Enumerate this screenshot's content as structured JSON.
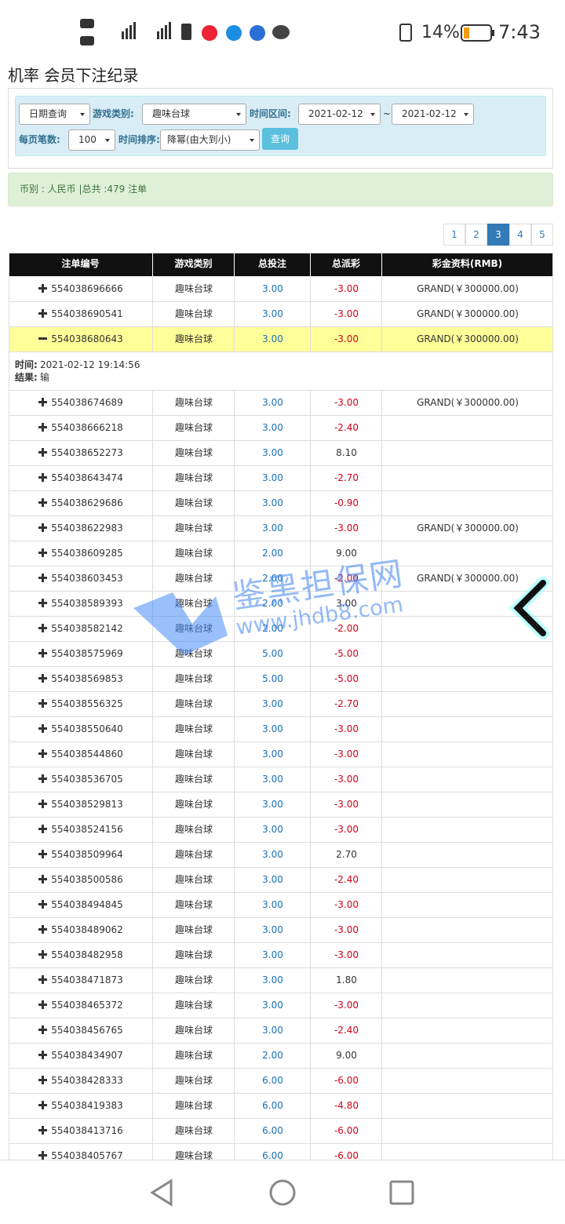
{
  "status_bar": {
    "battery": "14%",
    "time": "7:43"
  },
  "page": {
    "title": "机率 会员下注纪录"
  },
  "filter": {
    "date_mode": "日期查询",
    "game_label": "游戏类别:",
    "game": "趣味台球",
    "range_label": "时间区间:",
    "date_from": "2021-02-12",
    "range_sep": "~",
    "date_to": "2021-02-12",
    "per_page_label": "每页笔数:",
    "per_page": "100",
    "sort_label": "时间排序:",
    "sort": "降幂(由大到小)",
    "submit": "查询"
  },
  "summary": "币别 : 人民币 |总共 :479 注单",
  "pagination": {
    "pages": [
      "1",
      "2",
      "3",
      "4",
      "5"
    ],
    "active": 2
  },
  "table": {
    "headers": [
      "注单编号",
      "游戏类别",
      "总投注",
      "总派彩",
      "彩金资料(RMB)"
    ],
    "expanded": {
      "row": 2,
      "time_label": "时间:",
      "time": "2021-02-12 19:14:56",
      "result_label": "结果:",
      "result": "输"
    },
    "rows": [
      {
        "id": "554038696666",
        "game": "趣味台球",
        "bet": "3.00",
        "payout": "-3.00",
        "jackpot": "GRAND(￥300000.00)"
      },
      {
        "id": "554038690541",
        "game": "趣味台球",
        "bet": "3.00",
        "payout": "-3.00",
        "jackpot": "GRAND(￥300000.00)"
      },
      {
        "id": "554038680643",
        "game": "趣味台球",
        "bet": "3.00",
        "payout": "-3.00",
        "jackpot": "GRAND(￥300000.00)"
      },
      {
        "id": "554038674689",
        "game": "趣味台球",
        "bet": "3.00",
        "payout": "-3.00",
        "jackpot": "GRAND(￥300000.00)"
      },
      {
        "id": "554038666218",
        "game": "趣味台球",
        "bet": "3.00",
        "payout": "-2.40"
      },
      {
        "id": "554038652273",
        "game": "趣味台球",
        "bet": "3.00",
        "payout": "8.10"
      },
      {
        "id": "554038643474",
        "game": "趣味台球",
        "bet": "3.00",
        "payout": "-2.70"
      },
      {
        "id": "554038629686",
        "game": "趣味台球",
        "bet": "3.00",
        "payout": "-0.90"
      },
      {
        "id": "554038622983",
        "game": "趣味台球",
        "bet": "3.00",
        "payout": "-3.00",
        "jackpot": "GRAND(￥300000.00)"
      },
      {
        "id": "554038609285",
        "game": "趣味台球",
        "bet": "2.00",
        "payout": "9.00"
      },
      {
        "id": "554038603453",
        "game": "趣味台球",
        "bet": "2.00",
        "payout": "-2.00",
        "jackpot": "GRAND(￥300000.00)"
      },
      {
        "id": "554038589393",
        "game": "趣味台球",
        "bet": "2.00",
        "payout": "3.00"
      },
      {
        "id": "554038582142",
        "game": "趣味台球",
        "bet": "2.00",
        "payout": "-2.00"
      },
      {
        "id": "554038575969",
        "game": "趣味台球",
        "bet": "5.00",
        "payout": "-5.00"
      },
      {
        "id": "554038569853",
        "game": "趣味台球",
        "bet": "5.00",
        "payout": "-5.00"
      },
      {
        "id": "554038556325",
        "game": "趣味台球",
        "bet": "3.00",
        "payout": "-2.70"
      },
      {
        "id": "554038550640",
        "game": "趣味台球",
        "bet": "3.00",
        "payout": "-3.00"
      },
      {
        "id": "554038544860",
        "game": "趣味台球",
        "bet": "3.00",
        "payout": "-3.00"
      },
      {
        "id": "554038536705",
        "game": "趣味台球",
        "bet": "3.00",
        "payout": "-3.00"
      },
      {
        "id": "554038529813",
        "game": "趣味台球",
        "bet": "3.00",
        "payout": "-3.00"
      },
      {
        "id": "554038524156",
        "game": "趣味台球",
        "bet": "3.00",
        "payout": "-3.00"
      },
      {
        "id": "554038509964",
        "game": "趣味台球",
        "bet": "3.00",
        "payout": "2.70"
      },
      {
        "id": "554038500586",
        "game": "趣味台球",
        "bet": "3.00",
        "payout": "-2.40"
      },
      {
        "id": "554038494845",
        "game": "趣味台球",
        "bet": "3.00",
        "payout": "-3.00"
      },
      {
        "id": "554038489062",
        "game": "趣味台球",
        "bet": "3.00",
        "payout": "-3.00"
      },
      {
        "id": "554038482958",
        "game": "趣味台球",
        "bet": "3.00",
        "payout": "-3.00"
      },
      {
        "id": "554038471873",
        "game": "趣味台球",
        "bet": "3.00",
        "payout": "1.80"
      },
      {
        "id": "554038465372",
        "game": "趣味台球",
        "bet": "3.00",
        "payout": "-3.00"
      },
      {
        "id": "554038456765",
        "game": "趣味台球",
        "bet": "3.00",
        "payout": "-2.40"
      },
      {
        "id": "554038434907",
        "game": "趣味台球",
        "bet": "2.00",
        "payout": "9.00"
      },
      {
        "id": "554038428333",
        "game": "趣味台球",
        "bet": "6.00",
        "payout": "-6.00"
      },
      {
        "id": "554038419383",
        "game": "趣味台球",
        "bet": "6.00",
        "payout": "-4.80"
      },
      {
        "id": "554038413716",
        "game": "趣味台球",
        "bet": "6.00",
        "payout": "-6.00"
      },
      {
        "id": "554038405767",
        "game": "趣味台球",
        "bet": "6.00",
        "payout": "-6.00"
      }
    ]
  },
  "watermark": {
    "name": "鉴黑担保网",
    "url": "www.jhdb8.com"
  }
}
